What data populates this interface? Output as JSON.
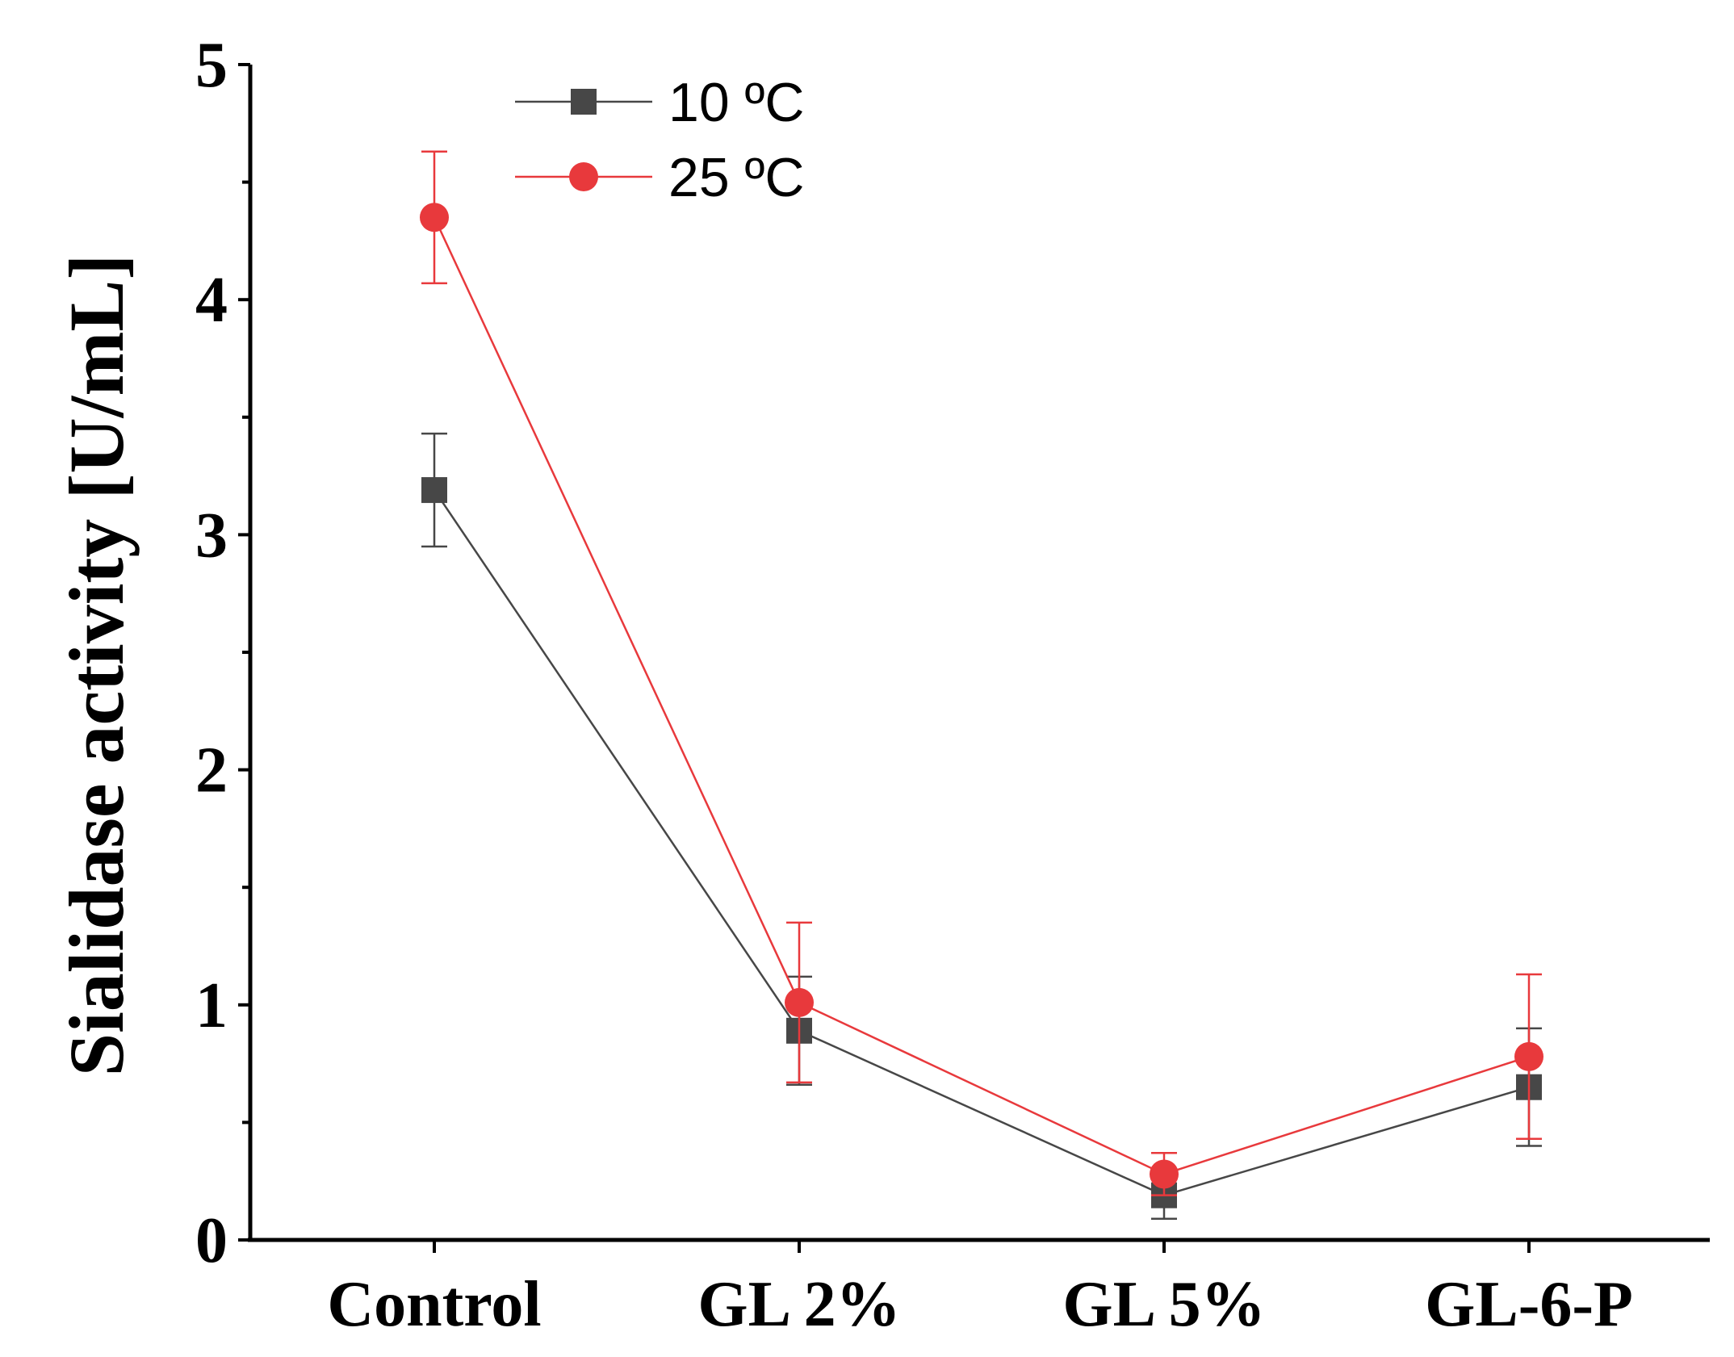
{
  "chart_data": {
    "type": "line",
    "title": "",
    "xlabel": "",
    "ylabel": "Sialidase activity [U/mL]",
    "categories": [
      "Control",
      "GL 2%",
      "GL 5%",
      "GL-6-P"
    ],
    "ylim": [
      0,
      5
    ],
    "yticks": [
      0,
      1,
      2,
      3,
      4,
      5
    ],
    "y_tick_labels": [
      "0",
      "1",
      "2",
      "3",
      "4",
      "5"
    ],
    "y_minor_ticks": [
      0.5,
      1.5,
      2.5,
      3.5,
      4.5
    ],
    "grid": false,
    "legend_position": "top-left",
    "series": [
      {
        "name": "10 ºC",
        "marker": "square",
        "color": "#474747",
        "values": [
          3.19,
          0.89,
          0.19,
          0.65
        ],
        "error": [
          0.24,
          0.23,
          0.1,
          0.25
        ]
      },
      {
        "name": "25 ºC",
        "marker": "circle",
        "color": "#e8393c",
        "values": [
          4.35,
          1.01,
          0.28,
          0.78
        ],
        "error": [
          0.28,
          0.34,
          0.09,
          0.35
        ]
      }
    ]
  }
}
